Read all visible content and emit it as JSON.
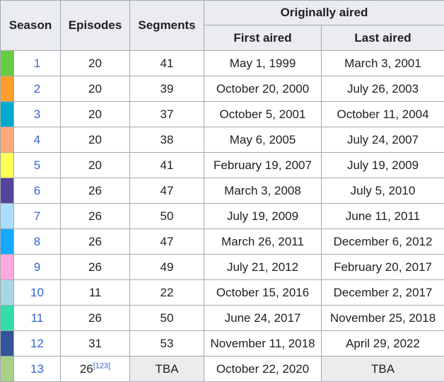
{
  "headers": {
    "season": "Season",
    "episodes": "Episodes",
    "segments": "Segments",
    "originally_aired": "Originally aired",
    "first_aired": "First aired",
    "last_aired": "Last aired"
  },
  "rows": [
    {
      "season": "1",
      "episodes": "20",
      "segments": "41",
      "first": "May 1, 1999",
      "last": "March 3, 2001",
      "color": "#66cc44"
    },
    {
      "season": "2",
      "episodes": "20",
      "segments": "39",
      "first": "October 20, 2000",
      "last": "July 26, 2003",
      "color": "#ff9f2a"
    },
    {
      "season": "3",
      "episodes": "20",
      "segments": "37",
      "first": "October 5, 2001",
      "last": "October 11, 2004",
      "color": "#00aacc"
    },
    {
      "season": "4",
      "episodes": "20",
      "segments": "38",
      "first": "May 6, 2005",
      "last": "July 24, 2007",
      "color": "#ffaa77"
    },
    {
      "season": "5",
      "episodes": "20",
      "segments": "41",
      "first": "February 19, 2007",
      "last": "July 19, 2009",
      "color": "#ffff55"
    },
    {
      "season": "6",
      "episodes": "26",
      "segments": "47",
      "first": "March 3, 2008",
      "last": "July 5, 2010",
      "color": "#554499"
    },
    {
      "season": "7",
      "episodes": "26",
      "segments": "50",
      "first": "July 19, 2009",
      "last": "June 11, 2011",
      "color": "#aaddff"
    },
    {
      "season": "8",
      "episodes": "26",
      "segments": "47",
      "first": "March 26, 2011",
      "last": "December 6, 2012",
      "color": "#11aaff"
    },
    {
      "season": "9",
      "episodes": "26",
      "segments": "49",
      "first": "July 21, 2012",
      "last": "February 20, 2017",
      "color": "#ffaadd"
    },
    {
      "season": "10",
      "episodes": "11",
      "segments": "22",
      "first": "October 15, 2016",
      "last": "December 2, 2017",
      "color": "#a9d8e4"
    },
    {
      "season": "11",
      "episodes": "26",
      "segments": "50",
      "first": "June 24, 2017",
      "last": "November 25, 2018",
      "color": "#33ddaa"
    },
    {
      "season": "12",
      "episodes": "31",
      "segments": "53",
      "first": "November 11, 2018",
      "last": "April 29, 2022",
      "color": "#335599"
    },
    {
      "season": "13",
      "episodes": "26",
      "episodes_ref": "[123]",
      "segments": "TBA",
      "first": "October 22, 2020",
      "last": "TBA",
      "color": "#aad088"
    }
  ]
}
